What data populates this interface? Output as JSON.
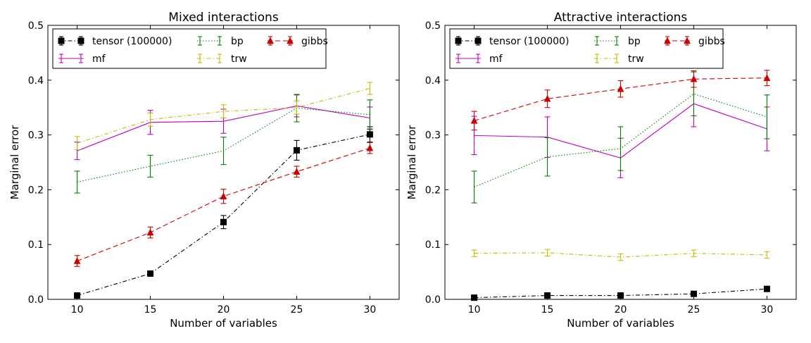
{
  "chart_data": [
    {
      "type": "line",
      "title": "Mixed interactions",
      "xlabel": "Number of variables",
      "ylabel": "Marginal error",
      "x": [
        10,
        15,
        20,
        25,
        30
      ],
      "xticks": [
        "10",
        "15",
        "20",
        "25",
        "30"
      ],
      "xlim": [
        8,
        32
      ],
      "ylim": [
        0,
        0.5
      ],
      "yticks": [
        "0.0",
        "0.1",
        "0.2",
        "0.3",
        "0.4",
        "0.5"
      ],
      "legend_position": "top-left",
      "series": [
        {
          "name": "tensor (100000)",
          "color": "#000000",
          "style": "dashdot",
          "marker": "square",
          "values": [
            0.007,
            0.047,
            0.141,
            0.272,
            0.301
          ],
          "errors": [
            0.003,
            0.004,
            0.012,
            0.018,
            0.014
          ]
        },
        {
          "name": "mf",
          "color": "#bf00bf",
          "style": "solid",
          "marker": "none",
          "values": [
            0.271,
            0.323,
            0.325,
            0.353,
            0.331
          ],
          "errors": [
            0.016,
            0.022,
            0.022,
            0.02,
            0.02
          ]
        },
        {
          "name": "bp",
          "color": "#007f00",
          "style": "dotted",
          "marker": "none",
          "values": [
            0.214,
            0.243,
            0.271,
            0.349,
            0.337
          ],
          "errors": [
            0.02,
            0.02,
            0.025,
            0.025,
            0.027
          ]
        },
        {
          "name": "trw",
          "color": "#bfbf00",
          "style": "dashdot",
          "marker": "none",
          "values": [
            0.285,
            0.328,
            0.343,
            0.35,
            0.385
          ],
          "errors": [
            0.012,
            0.012,
            0.012,
            0.012,
            0.011
          ]
        },
        {
          "name": "gibbs",
          "color": "#cc0000",
          "style": "dashed",
          "marker": "triangle",
          "values": [
            0.07,
            0.122,
            0.188,
            0.233,
            0.276
          ],
          "errors": [
            0.01,
            0.01,
            0.013,
            0.01,
            0.01
          ]
        }
      ]
    },
    {
      "type": "line",
      "title": "Attractive interactions",
      "xlabel": "Number of variables",
      "ylabel": "Marginal error",
      "x": [
        10,
        15,
        20,
        25,
        30
      ],
      "xticks": [
        "10",
        "15",
        "20",
        "25",
        "30"
      ],
      "xlim": [
        8,
        32
      ],
      "ylim": [
        0,
        0.5
      ],
      "yticks": [
        "0.0",
        "0.1",
        "0.2",
        "0.3",
        "0.4",
        "0.5"
      ],
      "legend_position": "top-left",
      "series": [
        {
          "name": "tensor (100000)",
          "color": "#000000",
          "style": "dashdot",
          "marker": "square",
          "values": [
            0.003,
            0.007,
            0.007,
            0.01,
            0.019
          ],
          "errors": [
            0.002,
            0.002,
            0.002,
            0.002,
            0.003
          ]
        },
        {
          "name": "mf",
          "color": "#bf00bf",
          "style": "solid",
          "marker": "none",
          "values": [
            0.299,
            0.296,
            0.258,
            0.357,
            0.311
          ],
          "errors": [
            0.035,
            0.037,
            0.036,
            0.042,
            0.04
          ]
        },
        {
          "name": "bp",
          "color": "#007f00",
          "style": "dotted",
          "marker": "none",
          "values": [
            0.205,
            0.26,
            0.275,
            0.375,
            0.333
          ],
          "errors": [
            0.029,
            0.035,
            0.04,
            0.04,
            0.04
          ]
        },
        {
          "name": "trw",
          "color": "#bfbf00",
          "style": "dashdot",
          "marker": "none",
          "values": [
            0.084,
            0.085,
            0.077,
            0.084,
            0.081
          ],
          "errors": [
            0.006,
            0.006,
            0.006,
            0.006,
            0.006
          ]
        },
        {
          "name": "gibbs",
          "color": "#cc0000",
          "style": "dashed",
          "marker": "triangle",
          "values": [
            0.326,
            0.366,
            0.384,
            0.402,
            0.404
          ],
          "errors": [
            0.017,
            0.016,
            0.015,
            0.015,
            0.014
          ]
        }
      ]
    }
  ]
}
